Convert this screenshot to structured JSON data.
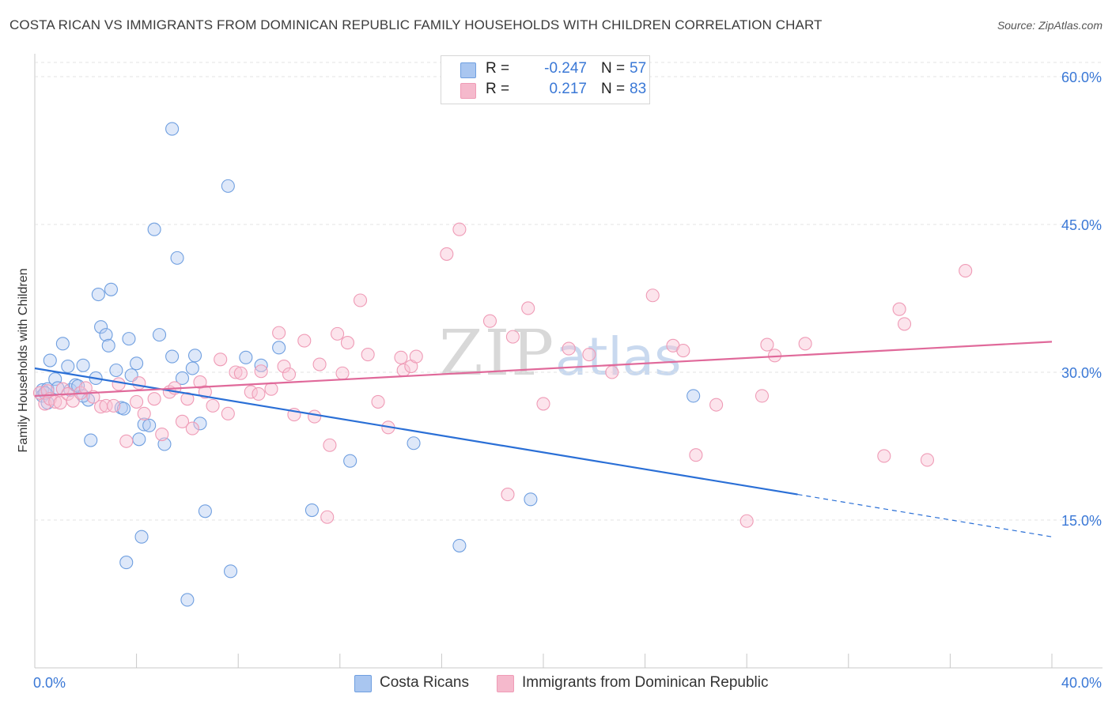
{
  "header": {
    "title": "COSTA RICAN VS IMMIGRANTS FROM DOMINICAN REPUBLIC FAMILY HOUSEHOLDS WITH CHILDREN CORRELATION CHART",
    "source": "Source: ZipAtlas.com"
  },
  "watermark": {
    "zip": "ZIP",
    "atlas": "atlas"
  },
  "stats": {
    "rows": [
      {
        "r_label": "R =",
        "r_value": "-0.247",
        "n_label": "N =",
        "n_value": "57",
        "color": "#a9c6f0"
      },
      {
        "r_label": "R =",
        "r_value": "0.217",
        "n_label": "N =",
        "n_value": "83",
        "color": "#f5b9cc"
      }
    ]
  },
  "legend": {
    "items": [
      {
        "label": "Costa Ricans",
        "color": "#a9c6f0"
      },
      {
        "label": "Immigrants from Dominican Republic",
        "color": "#f5b9cc"
      }
    ]
  },
  "chart_data": {
    "type": "scatter",
    "title": "COSTA RICAN VS IMMIGRANTS FROM DOMINICAN REPUBLIC FAMILY HOUSEHOLDS WITH CHILDREN CORRELATION CHART",
    "xlabel": "",
    "ylabel": "Family Households with Children",
    "xlim": [
      0,
      40
    ],
    "ylim": [
      0,
      62
    ],
    "x_ticks": [
      "0.0%",
      "40.0%"
    ],
    "y_ticks": [
      {
        "value": 15,
        "label": "15.0%"
      },
      {
        "value": 30,
        "label": "30.0%"
      },
      {
        "value": 45,
        "label": "45.0%"
      },
      {
        "value": 60,
        "label": "60.0%"
      }
    ],
    "grid": "horizontal dashed",
    "legend_position": "bottom",
    "series": [
      {
        "name": "Costa Ricans",
        "color": "#6f9fe0",
        "fill": "#b5cdf1",
        "trend": {
          "x": [
            0,
            30
          ],
          "y": [
            30.4,
            17.6
          ],
          "dashed_to": [
            40,
            13.3
          ],
          "color": "#2a6fd6"
        },
        "points": [
          [
            0.3,
            28.2
          ],
          [
            0.3,
            27.6
          ],
          [
            0.5,
            28.3
          ],
          [
            0.5,
            26.9
          ],
          [
            0.6,
            31.2
          ],
          [
            0.8,
            29.3
          ],
          [
            0.9,
            28.4
          ],
          [
            1.1,
            32.9
          ],
          [
            1.3,
            30.6
          ],
          [
            1.4,
            28.2
          ],
          [
            1.6,
            28.7
          ],
          [
            1.7,
            28.6
          ],
          [
            1.9,
            30.7
          ],
          [
            2.1,
            27.2
          ],
          [
            2.2,
            23.1
          ],
          [
            2.4,
            29.4
          ],
          [
            2.5,
            37.9
          ],
          [
            2.6,
            34.6
          ],
          [
            2.8,
            33.8
          ],
          [
            2.9,
            32.7
          ],
          [
            3.0,
            38.4
          ],
          [
            3.2,
            30.2
          ],
          [
            3.4,
            26.4
          ],
          [
            3.5,
            26.3
          ],
          [
            3.6,
            10.7
          ],
          [
            3.7,
            33.4
          ],
          [
            3.8,
            29.7
          ],
          [
            4.0,
            30.9
          ],
          [
            4.1,
            23.2
          ],
          [
            4.2,
            13.3
          ],
          [
            4.3,
            24.7
          ],
          [
            4.5,
            24.6
          ],
          [
            4.7,
            44.5
          ],
          [
            4.9,
            33.8
          ],
          [
            5.1,
            22.7
          ],
          [
            5.4,
            31.6
          ],
          [
            5.4,
            54.7
          ],
          [
            5.6,
            41.6
          ],
          [
            5.8,
            29.4
          ],
          [
            6.0,
            6.9
          ],
          [
            6.2,
            30.4
          ],
          [
            6.3,
            31.7
          ],
          [
            6.5,
            24.8
          ],
          [
            6.7,
            15.9
          ],
          [
            7.6,
            48.9
          ],
          [
            7.7,
            9.8
          ],
          [
            8.3,
            31.5
          ],
          [
            8.9,
            30.7
          ],
          [
            9.6,
            32.5
          ],
          [
            10.9,
            16.0
          ],
          [
            12.4,
            21.0
          ],
          [
            14.9,
            22.8
          ],
          [
            16.7,
            12.4
          ],
          [
            19.5,
            17.1
          ],
          [
            25.9,
            27.6
          ],
          [
            0.4,
            27.9
          ],
          [
            1.9,
            27.6
          ]
        ]
      },
      {
        "name": "Immigrants from Dominican Republic",
        "color": "#ef9bb6",
        "fill": "#f8c4d5",
        "trend": {
          "x": [
            0,
            40
          ],
          "y": [
            27.6,
            33.1
          ],
          "color": "#e0699a"
        },
        "points": [
          [
            0.2,
            27.9
          ],
          [
            0.4,
            26.8
          ],
          [
            0.5,
            28.1
          ],
          [
            0.6,
            27.3
          ],
          [
            0.8,
            27.0
          ],
          [
            1.0,
            26.9
          ],
          [
            1.1,
            28.3
          ],
          [
            1.3,
            27.8
          ],
          [
            1.5,
            27.1
          ],
          [
            1.8,
            27.9
          ],
          [
            2.0,
            28.4
          ],
          [
            2.3,
            27.5
          ],
          [
            2.6,
            26.5
          ],
          [
            2.8,
            26.6
          ],
          [
            3.1,
            26.6
          ],
          [
            3.3,
            28.8
          ],
          [
            3.6,
            23.0
          ],
          [
            4.0,
            27.0
          ],
          [
            4.1,
            28.9
          ],
          [
            4.3,
            25.8
          ],
          [
            4.7,
            27.3
          ],
          [
            5.0,
            23.7
          ],
          [
            5.3,
            28.0
          ],
          [
            5.5,
            28.4
          ],
          [
            5.8,
            25.0
          ],
          [
            6.0,
            27.3
          ],
          [
            6.2,
            24.3
          ],
          [
            6.5,
            29.0
          ],
          [
            6.7,
            28.0
          ],
          [
            7.0,
            26.6
          ],
          [
            7.3,
            31.3
          ],
          [
            7.6,
            25.8
          ],
          [
            7.9,
            30.0
          ],
          [
            8.1,
            29.9
          ],
          [
            8.5,
            28.0
          ],
          [
            8.8,
            27.8
          ],
          [
            8.9,
            30.1
          ],
          [
            9.3,
            28.3
          ],
          [
            9.6,
            34.0
          ],
          [
            9.8,
            30.6
          ],
          [
            10.0,
            29.8
          ],
          [
            10.2,
            25.7
          ],
          [
            10.6,
            33.2
          ],
          [
            11.0,
            25.5
          ],
          [
            11.2,
            30.8
          ],
          [
            11.5,
            15.3
          ],
          [
            11.6,
            22.6
          ],
          [
            11.9,
            33.9
          ],
          [
            12.1,
            29.9
          ],
          [
            12.3,
            33.0
          ],
          [
            12.8,
            37.3
          ],
          [
            13.1,
            31.8
          ],
          [
            13.5,
            27.0
          ],
          [
            13.9,
            24.4
          ],
          [
            14.4,
            31.5
          ],
          [
            14.5,
            30.2
          ],
          [
            14.8,
            30.6
          ],
          [
            15.0,
            31.6
          ],
          [
            16.2,
            42.0
          ],
          [
            16.7,
            44.5
          ],
          [
            17.9,
            35.2
          ],
          [
            18.6,
            17.6
          ],
          [
            18.8,
            33.6
          ],
          [
            19.4,
            36.5
          ],
          [
            20.0,
            26.8
          ],
          [
            21.0,
            32.4
          ],
          [
            21.8,
            31.8
          ],
          [
            22.7,
            30.0
          ],
          [
            24.3,
            37.8
          ],
          [
            25.1,
            32.7
          ],
          [
            25.5,
            32.2
          ],
          [
            26.0,
            21.6
          ],
          [
            26.8,
            26.7
          ],
          [
            28.0,
            14.9
          ],
          [
            28.6,
            27.6
          ],
          [
            28.8,
            32.8
          ],
          [
            29.1,
            31.7
          ],
          [
            30.3,
            32.9
          ],
          [
            33.4,
            21.5
          ],
          [
            34.0,
            36.4
          ],
          [
            34.2,
            34.9
          ],
          [
            35.1,
            21.1
          ],
          [
            36.6,
            40.3
          ]
        ]
      }
    ]
  }
}
